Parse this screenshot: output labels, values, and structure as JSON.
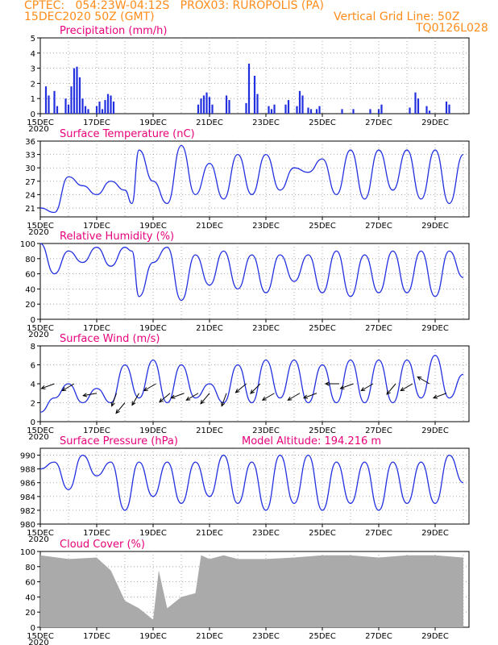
{
  "header": {
    "line1_left": "CPTEC:   054:23W-04:12S   PROX03: RUROPOLIS (PA)",
    "line2_left": "15DEC2020 50Z (GMT)",
    "line2_right": "Vertical Grid Line: 50Z",
    "line3_right": "TQ0126L028"
  },
  "colors": {
    "series": "#2230e0",
    "title": "#e8007a",
    "header": "#ff8c1a",
    "cloud": "#aaaaaa",
    "grid": "#999999"
  },
  "x_ticks": [
    "15DEC",
    "17DEC",
    "19DEC",
    "21DEC",
    "23DEC",
    "25DEC",
    "27DEC",
    "29DEC"
  ],
  "x_year_label": "2020",
  "chart_data": [
    {
      "type": "bar",
      "title": "Precipitation (mm/h)",
      "ylim": [
        0,
        5
      ],
      "yticks": [
        0,
        1,
        2,
        3,
        4,
        5
      ],
      "x_days": [
        0.2,
        0.3,
        0.5,
        0.6,
        0.9,
        1.0,
        1.1,
        1.2,
        1.3,
        1.4,
        1.5,
        1.6,
        1.7,
        2.0,
        2.1,
        2.2,
        2.3,
        2.4,
        2.5,
        2.6,
        5.6,
        5.7,
        5.8,
        5.9,
        6.0,
        6.1,
        6.6,
        6.7,
        7.3,
        7.4,
        7.6,
        7.7,
        8.1,
        8.2,
        8.3,
        8.7,
        8.8,
        9.1,
        9.2,
        9.3,
        9.5,
        9.6,
        9.8,
        9.9,
        10.7,
        11.1,
        11.7,
        12.0,
        12.1,
        13.1,
        13.3,
        13.4,
        13.7,
        13.8,
        14.4,
        14.5
      ],
      "values": [
        1.8,
        1.2,
        1.5,
        0.5,
        1.0,
        0.6,
        1.8,
        3.0,
        3.1,
        2.4,
        1.0,
        0.5,
        0.3,
        0.5,
        0.8,
        0.3,
        0.9,
        1.3,
        1.2,
        0.8,
        0.6,
        1.0,
        1.2,
        1.4,
        1.1,
        0.6,
        1.2,
        0.9,
        0.7,
        3.3,
        2.5,
        1.3,
        0.5,
        0.3,
        0.6,
        0.6,
        0.9,
        0.5,
        1.5,
        1.2,
        0.4,
        0.3,
        0.3,
        0.5,
        0.3,
        0.3,
        0.3,
        0.3,
        0.6,
        0.4,
        1.4,
        1.0,
        0.5,
        0.2,
        0.8,
        0.6
      ]
    },
    {
      "type": "line",
      "title": "Surface Temperature (nC)",
      "ylim": [
        19,
        36
      ],
      "yticks": [
        21,
        24,
        27,
        30,
        33,
        36
      ],
      "x_days": [
        0,
        0.5,
        1,
        1.5,
        2,
        2.5,
        3,
        3.25,
        3.5,
        4,
        4.5,
        5,
        5.5,
        6,
        6.5,
        7,
        7.5,
        8,
        8.5,
        9,
        9.5,
        10,
        10.5,
        11,
        11.5,
        12,
        12.5,
        13,
        13.5,
        14,
        14.5,
        15
      ],
      "values": [
        21,
        20,
        28,
        26,
        24,
        27,
        25,
        22,
        34,
        27,
        22,
        35,
        24,
        31,
        23,
        33,
        24,
        33,
        25,
        30,
        29,
        32,
        24,
        34,
        23,
        34,
        25,
        34,
        23,
        34,
        22,
        33
      ]
    },
    {
      "type": "line",
      "title": "Relative Humidity (%)",
      "ylim": [
        0,
        100
      ],
      "yticks": [
        0,
        20,
        40,
        60,
        80,
        100
      ],
      "x_days": [
        0,
        0.5,
        1,
        1.5,
        2,
        2.5,
        3,
        3.25,
        3.5,
        4,
        4.5,
        5,
        5.5,
        6,
        6.5,
        7,
        7.5,
        8,
        8.5,
        9,
        9.5,
        10,
        10.5,
        11,
        11.5,
        12,
        12.5,
        13,
        13.5,
        14,
        14.5,
        15
      ],
      "values": [
        100,
        60,
        90,
        75,
        95,
        70,
        95,
        90,
        30,
        75,
        95,
        25,
        85,
        45,
        90,
        40,
        85,
        35,
        85,
        50,
        85,
        35,
        90,
        30,
        85,
        35,
        90,
        35,
        90,
        30,
        90,
        55
      ]
    },
    {
      "type": "line",
      "title": "Surface Wind (m/s)",
      "ylim": [
        0,
        8
      ],
      "yticks": [
        0,
        2,
        4,
        6,
        8
      ],
      "x_days": [
        0,
        0.5,
        1,
        1.5,
        2,
        2.5,
        3,
        3.5,
        4,
        4.5,
        5,
        5.5,
        6,
        6.5,
        7,
        7.5,
        8,
        8.5,
        9,
        9.5,
        10,
        10.5,
        11,
        11.5,
        12,
        12.5,
        13,
        13.5,
        14,
        14.5,
        15
      ],
      "values": [
        1,
        2.5,
        4,
        2,
        3.5,
        2,
        6,
        2.5,
        6.5,
        2,
        6,
        2.5,
        4,
        2,
        6,
        2,
        6.5,
        2.5,
        6.5,
        2,
        6,
        2,
        6.5,
        2,
        6.5,
        2,
        6.5,
        2.5,
        7,
        2.5,
        5
      ]
    },
    {
      "type": "line",
      "title": "Surface Pressure (hPa)",
      "annotation": "Model Altitude: 194.216 m",
      "ylim": [
        980,
        991
      ],
      "yticks": [
        980,
        982,
        984,
        986,
        988,
        990
      ],
      "x_days": [
        0,
        0.5,
        1,
        1.5,
        2,
        2.5,
        3,
        3.5,
        4,
        4.5,
        5,
        5.5,
        6,
        6.5,
        7,
        7.5,
        8,
        8.5,
        9,
        9.5,
        10,
        10.5,
        11,
        11.5,
        12,
        12.5,
        13,
        13.5,
        14,
        14.5,
        15
      ],
      "values": [
        988,
        989,
        985,
        990,
        987,
        989,
        982,
        989,
        984,
        989,
        983,
        989,
        984,
        990,
        983,
        989,
        982,
        990,
        983,
        990,
        982,
        989,
        983,
        989,
        982,
        989,
        983,
        989,
        983,
        990,
        986
      ]
    },
    {
      "type": "area",
      "title": "Cloud Cover (%)",
      "ylim": [
        0,
        100
      ],
      "yticks": [
        0,
        20,
        40,
        60,
        80,
        100
      ],
      "x_days": [
        0,
        1,
        2,
        2.5,
        3,
        3.5,
        4,
        4.2,
        4.5,
        5,
        5.5,
        5.7,
        6,
        6.5,
        7,
        8,
        9,
        10,
        11,
        12,
        13,
        14,
        15
      ],
      "values": [
        95,
        90,
        92,
        75,
        35,
        25,
        10,
        75,
        25,
        40,
        45,
        95,
        90,
        95,
        90,
        90,
        92,
        95,
        95,
        92,
        95,
        95,
        92
      ]
    }
  ],
  "wind_arrows": {
    "x_days": [
      0.5,
      1.2,
      2.0,
      2.7,
      3.0,
      3.5,
      4.1,
      4.6,
      5.1,
      5.6,
      6.0,
      6.6,
      7.3,
      7.8,
      8.3,
      9.2,
      9.8,
      10.6,
      11.1,
      11.8,
      12.6,
      13.2,
      13.8,
      14.4
    ],
    "speeds": [
      4,
      4,
      3,
      3,
      2,
      3,
      4,
      3,
      3,
      3,
      3,
      3,
      4,
      4,
      3,
      3,
      3,
      4,
      4,
      4,
      4,
      4,
      4,
      3
    ],
    "dir_deg": [
      200,
      210,
      190,
      250,
      230,
      240,
      210,
      220,
      200,
      210,
      230,
      250,
      220,
      225,
      210,
      210,
      200,
      180,
      200,
      210,
      230,
      210,
      150,
      200
    ]
  },
  "panels": [
    {
      "title": "Precipitation (mm/h)"
    },
    {
      "title": "Surface Temperature (nC)"
    },
    {
      "title": "Relative Humidity (%)"
    },
    {
      "title": "Surface Wind (m/s)"
    },
    {
      "title": "Surface Pressure (hPa)",
      "annotation": "Model Altitude: 194.216 m"
    },
    {
      "title": "Cloud Cover (%)"
    }
  ]
}
